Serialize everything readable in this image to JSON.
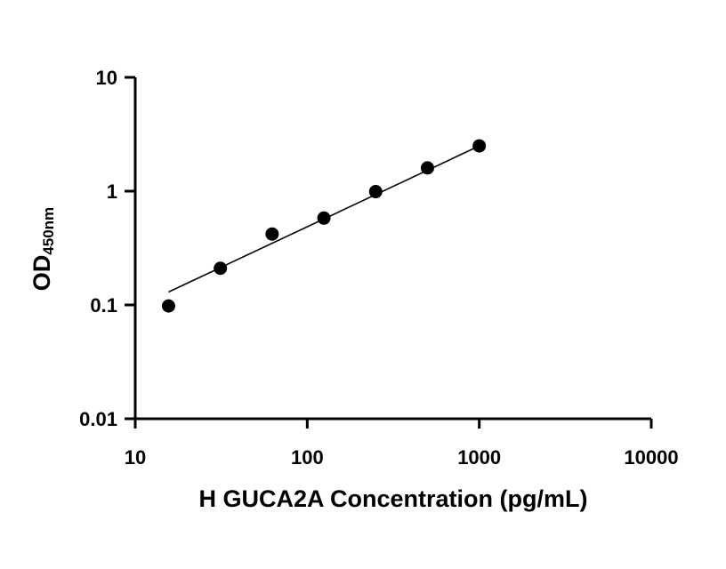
{
  "chart_data": {
    "type": "scatter",
    "xlabel": "H GUCA2A Concentration (pg/mL)",
    "ylabel": {
      "main": "OD",
      "sub": "450nm"
    },
    "xscale": "log",
    "yscale": "log",
    "xlim": [
      10,
      10000
    ],
    "ylim": [
      0.01,
      10
    ],
    "xticks": [
      10,
      100,
      1000,
      10000
    ],
    "xtick_labels": [
      "10",
      "100",
      "1000",
      "10000"
    ],
    "yticks": [
      0.01,
      0.1,
      1,
      10
    ],
    "ytick_labels": [
      "0.01",
      "0.1",
      "1",
      "10"
    ],
    "grid": false,
    "points": [
      {
        "x": 15.625,
        "y": 0.098
      },
      {
        "x": 31.25,
        "y": 0.21
      },
      {
        "x": 62.5,
        "y": 0.42
      },
      {
        "x": 125,
        "y": 0.58
      },
      {
        "x": 250,
        "y": 0.99
      },
      {
        "x": 500,
        "y": 1.6
      },
      {
        "x": 1000,
        "y": 2.5
      }
    ],
    "fit_line": {
      "x_start": 15.625,
      "x_end": 1000,
      "y_start": 0.13,
      "y_end": 2.5
    }
  }
}
